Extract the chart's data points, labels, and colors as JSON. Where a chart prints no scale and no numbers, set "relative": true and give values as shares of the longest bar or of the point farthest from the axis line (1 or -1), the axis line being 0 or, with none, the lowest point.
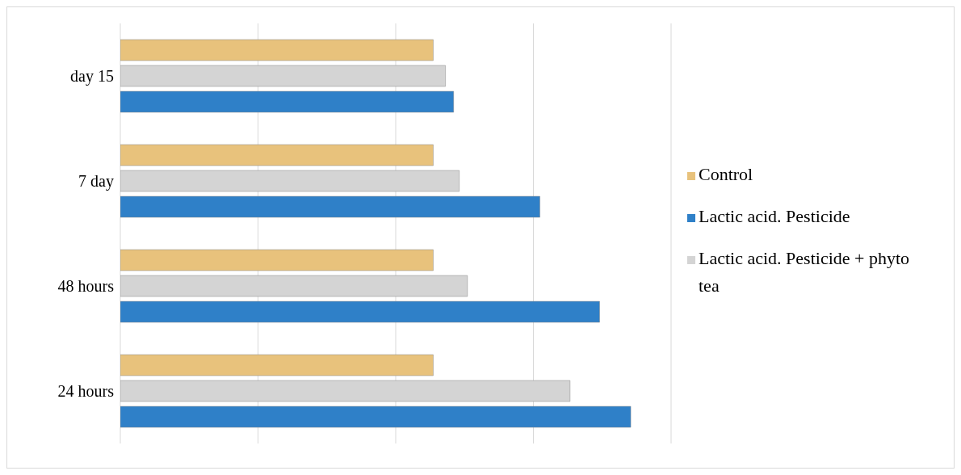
{
  "chart_data": {
    "type": "bar",
    "orientation": "horizontal",
    "relative": true,
    "grid": "x",
    "legend": "right",
    "categories": [
      "day 15",
      "7 day",
      "48 hours",
      "24 hours"
    ],
    "series": [
      {
        "name": "Control",
        "color": "#e8c27c",
        "values": [
          0.613,
          0.613,
          0.613,
          0.613
        ]
      },
      {
        "name": "Lactic acid. Pesticide + phyto tea",
        "color": "#d4d4d4",
        "values": [
          0.637,
          0.664,
          0.68,
          0.881
        ]
      },
      {
        "name": "Lactic acid. Pesticide",
        "color": "#2f80c8",
        "values": [
          0.653,
          0.822,
          0.939,
          1
        ]
      }
    ]
  }
}
